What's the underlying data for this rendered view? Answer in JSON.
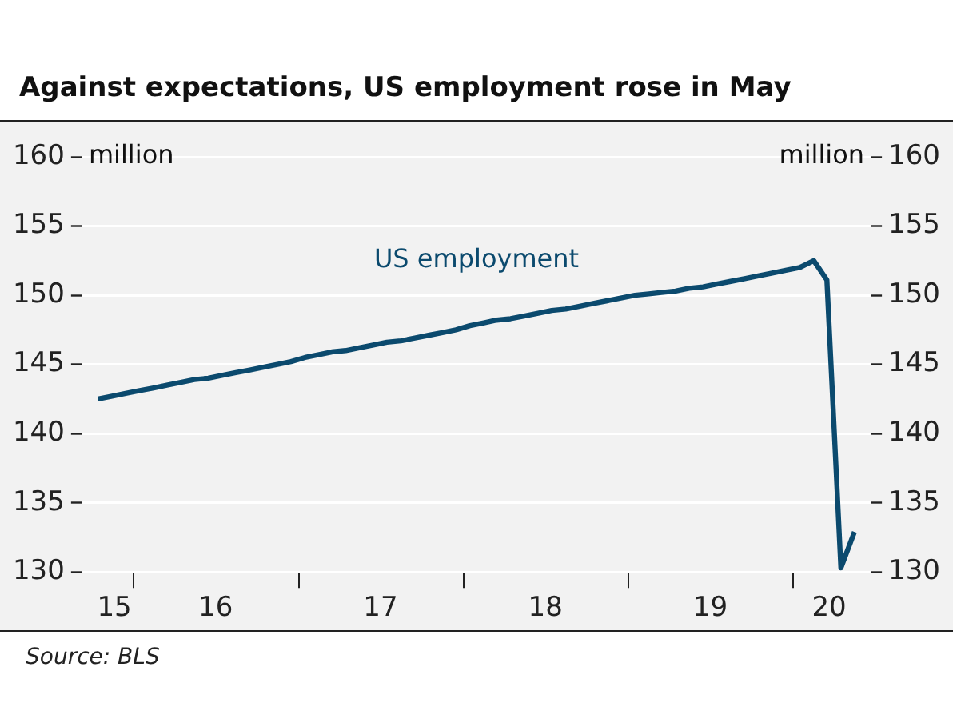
{
  "chart_data": {
    "type": "line",
    "title": "Against expectations, US employment rose in May",
    "ylabel": "million",
    "y2label": "million",
    "annotations": [
      "Source: BLS"
    ],
    "x": [
      "2015-10-15",
      "2015-11-15",
      "2015-12-15",
      "2016-01-15",
      "2016-02-15",
      "2016-03-15",
      "2016-04-15",
      "2016-05-15",
      "2016-06-15",
      "2016-07-15",
      "2016-08-15",
      "2016-09-15",
      "2016-10-15",
      "2016-11-15",
      "2016-12-15",
      "2017-01-15",
      "2017-02-15",
      "2017-03-15",
      "2017-04-15",
      "2017-05-15",
      "2017-06-15",
      "2017-07-15",
      "2017-08-15",
      "2017-09-15",
      "2017-10-15",
      "2017-11-15",
      "2017-12-15",
      "2018-01-15",
      "2018-02-15",
      "2018-03-15",
      "2018-04-15",
      "2018-05-15",
      "2018-06-15",
      "2018-07-15",
      "2018-08-15",
      "2018-09-15",
      "2018-10-15",
      "2018-11-15",
      "2018-12-15",
      "2019-01-15",
      "2019-02-15",
      "2019-03-15",
      "2019-04-15",
      "2019-05-15",
      "2019-06-15",
      "2019-07-15",
      "2019-08-15",
      "2019-09-15",
      "2019-10-15",
      "2019-11-15",
      "2019-12-15",
      "2020-01-15",
      "2020-02-15",
      "2020-03-15",
      "2020-04-15",
      "2020-05-15"
    ],
    "series": [
      {
        "name": "US employment",
        "color": "#0b4a6e",
        "values": [
          142.5,
          142.7,
          142.9,
          143.1,
          143.3,
          143.5,
          143.7,
          143.9,
          144.0,
          144.2,
          144.4,
          144.6,
          144.8,
          145.0,
          145.2,
          145.5,
          145.7,
          145.9,
          146.0,
          146.2,
          146.4,
          146.6,
          146.7,
          146.9,
          147.1,
          147.3,
          147.5,
          147.8,
          148.0,
          148.2,
          148.3,
          148.5,
          148.7,
          148.9,
          149.0,
          149.2,
          149.4,
          149.6,
          149.8,
          150.0,
          150.1,
          150.2,
          150.3,
          150.5,
          150.6,
          150.8,
          151.0,
          151.2,
          151.4,
          151.6,
          151.8,
          152.0,
          152.5,
          151.1,
          130.3,
          132.9
        ]
      }
    ],
    "xlim": [
      "2015-09-10",
      "2020-06-20"
    ],
    "xticks": [
      {
        "value": "2015-11-20",
        "label": "15"
      },
      {
        "value": "2016-01-01",
        "label": null
      },
      {
        "value": "2016-07-01",
        "label": "16"
      },
      {
        "value": "2017-01-01",
        "label": null
      },
      {
        "value": "2017-07-01",
        "label": "17"
      },
      {
        "value": "2018-01-01",
        "label": null
      },
      {
        "value": "2018-07-01",
        "label": "18"
      },
      {
        "value": "2019-01-01",
        "label": null
      },
      {
        "value": "2019-07-01",
        "label": "19"
      },
      {
        "value": "2020-01-01",
        "label": null
      },
      {
        "value": "2020-03-20",
        "label": "20"
      }
    ],
    "ylim": [
      130,
      160
    ],
    "yticks": [
      130,
      135,
      140,
      145,
      150,
      155,
      160
    ],
    "y2lim": [
      130,
      160
    ],
    "y2ticks": [
      130,
      135,
      140,
      145,
      150,
      155,
      160
    ],
    "grid": "y",
    "legend": false,
    "marker": "none",
    "line_style": "solid"
  }
}
